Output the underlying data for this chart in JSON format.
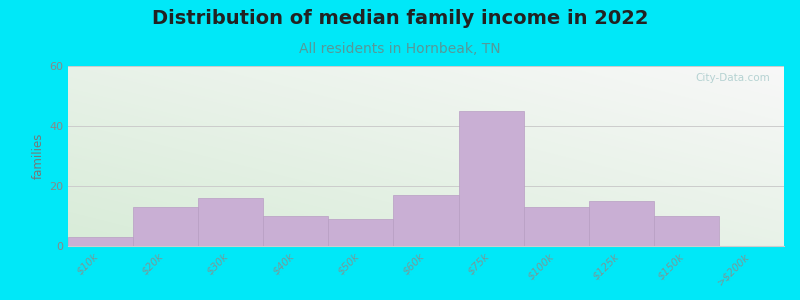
{
  "title": "Distribution of median family income in 2022",
  "subtitle": "All residents in Hornbeak, TN",
  "ylabel": "families",
  "categories": [
    "$10k",
    "$20k",
    "$30k",
    "$40k",
    "$50k",
    "$60k",
    "$75k",
    "$100k",
    "$125k",
    "$150k",
    ">$200k"
  ],
  "values": [
    3,
    13,
    16,
    10,
    9,
    17,
    45,
    13,
    15,
    10,
    0
  ],
  "bar_color": "#c9afd4",
  "bar_edge_color": "#b89ec3",
  "ylim": [
    0,
    60
  ],
  "yticks": [
    0,
    20,
    40,
    60
  ],
  "background_outer": "#00e8f8",
  "background_plot_topleft": "#d6ecd6",
  "background_plot_bottomright": "#f8f8f8",
  "grid_color": "#cccccc",
  "title_fontsize": 14,
  "subtitle_fontsize": 10,
  "title_color": "#222222",
  "subtitle_color": "#559999",
  "ylabel_color": "#777777",
  "tick_label_color": "#779999",
  "watermark_text": "City-Data.com",
  "watermark_color": "#aacccc"
}
